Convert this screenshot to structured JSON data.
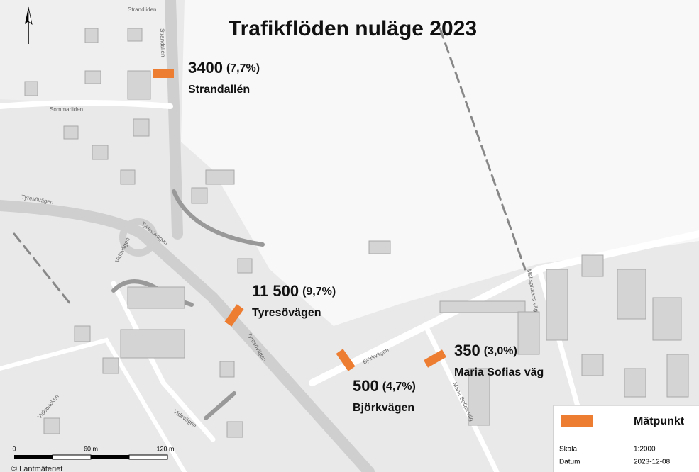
{
  "title": "Trafikflöden nuläge 2023",
  "points": [
    {
      "count": "3400",
      "share": "(7,7%)",
      "street": "Strandallén"
    },
    {
      "count": "11 500",
      "share": "(9,7%)",
      "street": "Tyresövägen"
    },
    {
      "count": "500",
      "share": "(4,7%)",
      "street": "Björkvägen"
    },
    {
      "count": "350",
      "share": "(3,0%)",
      "street": "Maria Sofias väg"
    }
  ],
  "legend": {
    "label": "Mätpunkt",
    "rows": [
      [
        "Skala",
        "1:2000"
      ],
      [
        "Datum",
        "2023-12-08"
      ]
    ]
  },
  "scalebar": [
    "0",
    "60 m",
    "120 m"
  ],
  "credit": "© Lantmäteriet",
  "streets": [
    "Strandallén",
    "Sommarliden",
    "Tyresövägen",
    "Tyresövägen",
    "Videvägen",
    "Björkvägen",
    "Tyresövägen",
    "Videvägen",
    "Maria Sofias väg",
    "Mältsprutans väg",
    "Videbacken",
    "Strandliden"
  ]
}
